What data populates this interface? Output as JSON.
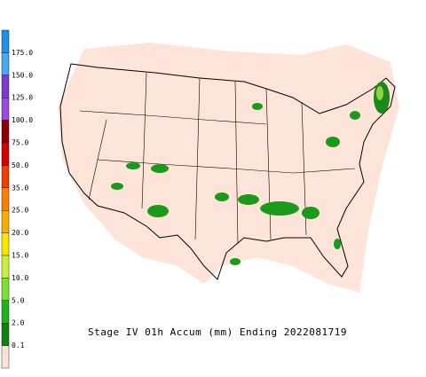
{
  "legend": {
    "labels": [
      "175.0",
      "150.0",
      "125.0",
      "100.0",
      "75.0",
      "50.0",
      "35.0",
      "25.0",
      "20.0",
      "15.0",
      "10.0",
      "5.0",
      "2.0",
      "0.1"
    ]
  },
  "title": "Stage IV 01h Accum (mm) Ending 2022081719"
}
